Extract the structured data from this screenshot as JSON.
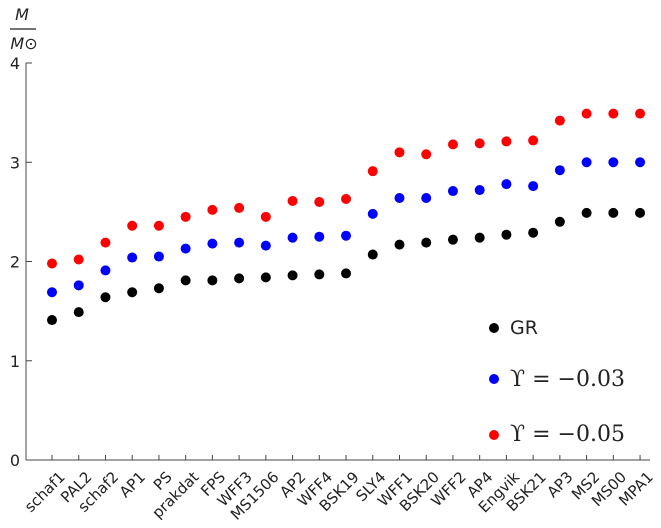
{
  "chart_data": {
    "type": "scatter",
    "ylabel_numerator": "M",
    "ylabel_denominator": "M⊙",
    "ylim": [
      0,
      4
    ],
    "yticks": [
      0,
      1,
      2,
      3,
      4
    ],
    "grid": false,
    "legend_position": "bottom-right",
    "categories": [
      "schaf1",
      "PAL2",
      "schaf2",
      "AP1",
      "PS",
      "prakdat",
      "FPS",
      "WFF3",
      "MS1506",
      "AP2",
      "WFF4",
      "BSK19",
      "SLY4",
      "WFF1",
      "BSK20",
      "WFF2",
      "AP4",
      "Engvik",
      "BSK21",
      "AP3",
      "MS2",
      "MS00",
      "MPA1"
    ],
    "series": [
      {
        "name": "GR",
        "color": "#000000",
        "values": [
          1.41,
          1.49,
          1.64,
          1.69,
          1.73,
          1.81,
          1.81,
          1.83,
          1.84,
          1.86,
          1.87,
          1.88,
          2.07,
          2.17,
          2.19,
          2.22,
          2.24,
          2.27,
          2.29,
          2.4,
          2.49,
          2.49,
          2.49
        ]
      },
      {
        "name": "ϒ = −0.03",
        "color": "#0000ff",
        "values": [
          1.69,
          1.76,
          1.91,
          2.04,
          2.05,
          2.13,
          2.18,
          2.19,
          2.16,
          2.24,
          2.25,
          2.26,
          2.48,
          2.64,
          2.64,
          2.71,
          2.72,
          2.78,
          2.76,
          2.92,
          3.0,
          3.0,
          3.0
        ]
      },
      {
        "name": "ϒ = −0.05",
        "color": "#ff0000",
        "values": [
          1.98,
          2.02,
          2.19,
          2.36,
          2.36,
          2.45,
          2.52,
          2.54,
          2.45,
          2.61,
          2.6,
          2.63,
          2.91,
          3.1,
          3.08,
          3.18,
          3.19,
          3.21,
          3.22,
          3.42,
          3.49,
          3.49,
          3.49
        ]
      }
    ]
  }
}
